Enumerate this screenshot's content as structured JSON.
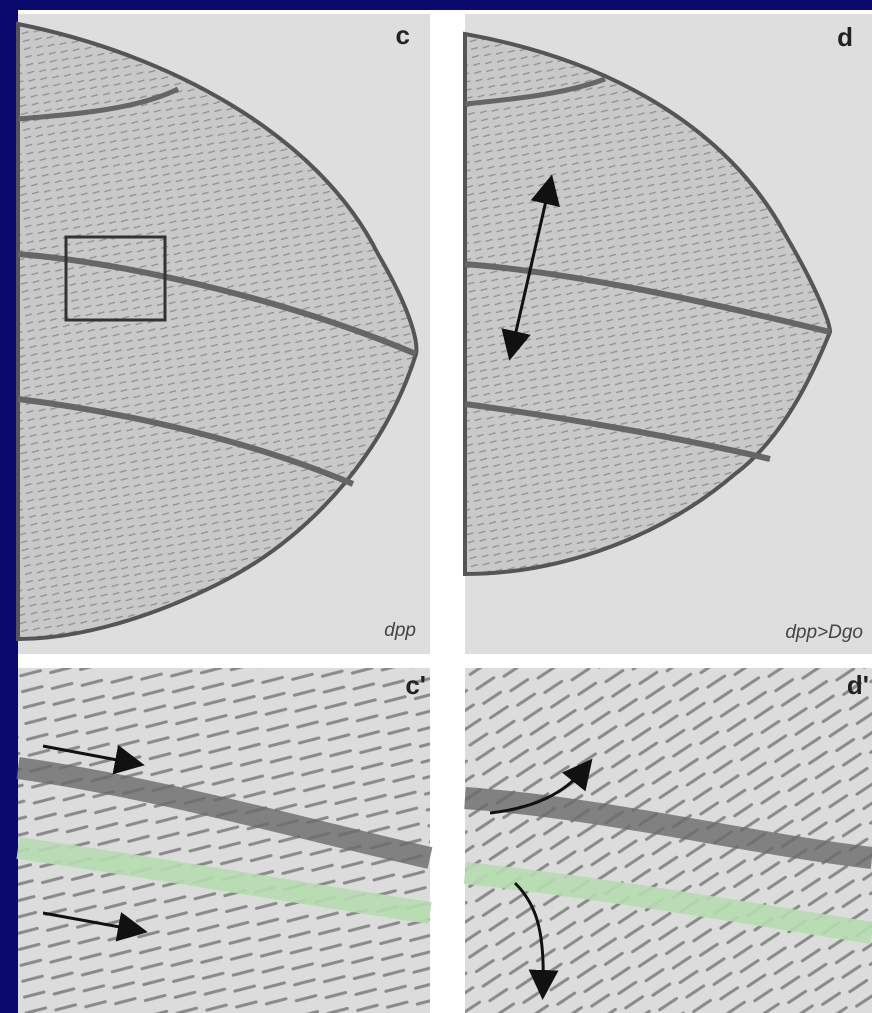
{
  "panels": [
    {
      "label": "c",
      "caption": "dpp"
    },
    {
      "label": "d",
      "caption": "dpp>Dgo"
    },
    {
      "label": "c'"
    },
    {
      "label": "d'"
    }
  ]
}
